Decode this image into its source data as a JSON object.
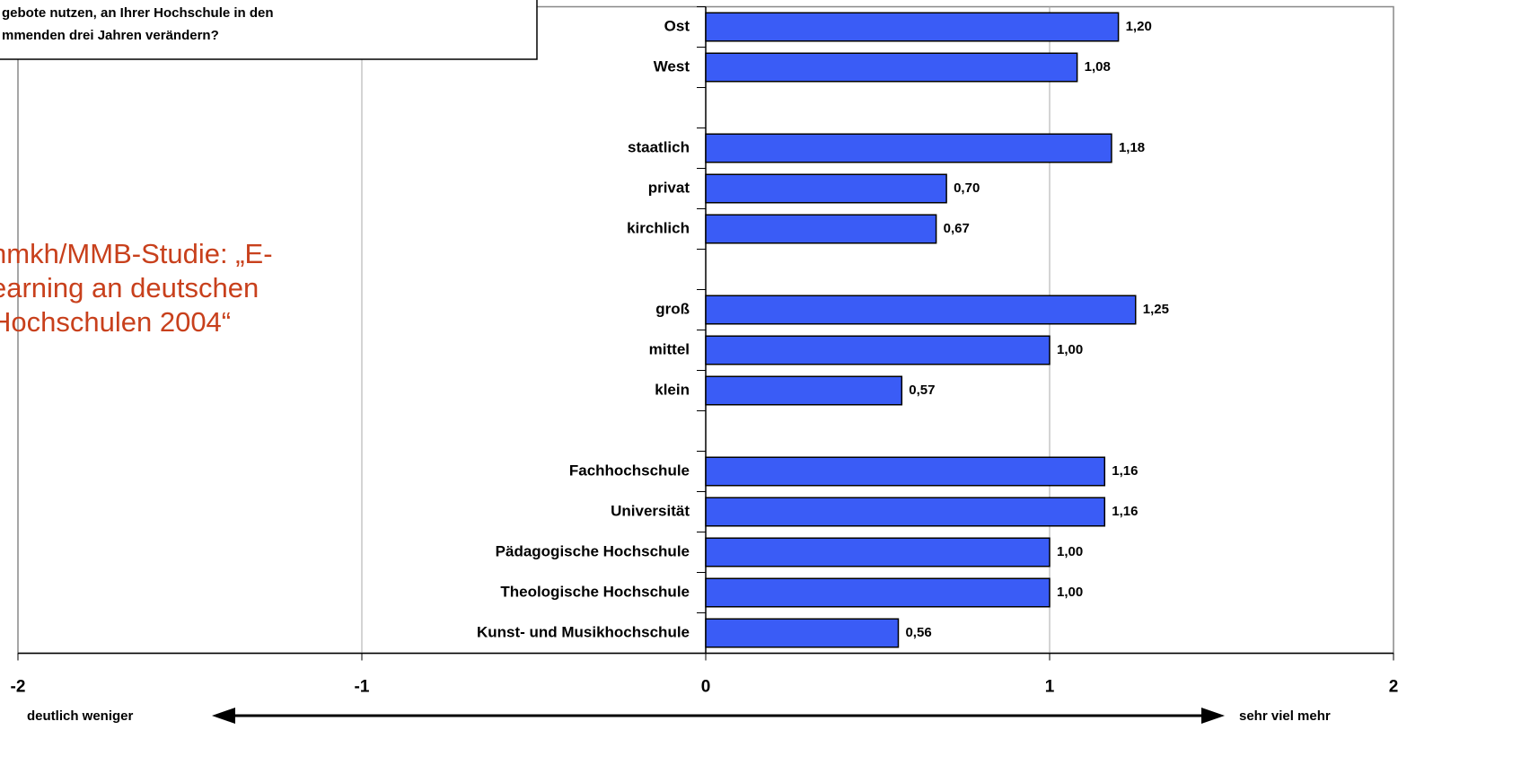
{
  "chart_data": {
    "type": "bar",
    "orientation": "horizontal",
    "title": [
      "gebote nutzen, an Ihrer Hochschule in den",
      "mmenden drei Jahren verändern?"
    ],
    "annotation": [
      "hmkh/MMB-Studie: „E-",
      "earning an deutschen",
      "Hochschulen 2004“"
    ],
    "categories": [
      "Ost",
      "West",
      null,
      "staatlich",
      "privat",
      "kirchlich",
      null,
      "groß",
      "mittel",
      "klein",
      null,
      "Fachhochschule",
      "Universität",
      "Pädagogische Hochschule",
      "Theologische Hochschule",
      "Kunst- und Musikhochschule"
    ],
    "values": [
      1.2,
      1.08,
      null,
      1.18,
      0.7,
      0.67,
      null,
      1.25,
      1.0,
      0.57,
      null,
      1.16,
      1.16,
      1.0,
      1.0,
      0.56
    ],
    "value_labels": [
      "1,20",
      "1,08",
      null,
      "1,18",
      "0,70",
      "0,67",
      null,
      "1,25",
      "1,00",
      "0,57",
      null,
      "1,16",
      "1,16",
      "1,00",
      "1,00",
      "0,56"
    ],
    "color": "#3a5cf6",
    "xlim": [
      -2,
      2
    ],
    "xticks": [
      -2,
      -1,
      0,
      1,
      2
    ],
    "grid": true,
    "scale_labels": [
      "deutlich weniger",
      "sehr viel mehr"
    ]
  }
}
